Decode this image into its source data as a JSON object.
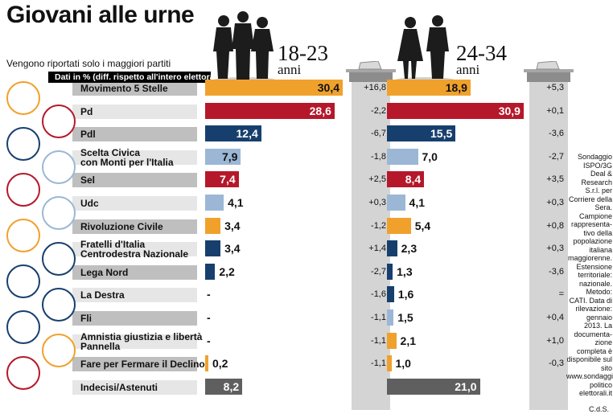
{
  "title": "Giovani alle urne",
  "subtitle": "Vengono riportati solo i maggiori partiti",
  "legend_note": "Dati in % (diff. rispetto all'intero elettorato)",
  "age_groups": [
    {
      "range": "18-23",
      "unit": "anni"
    },
    {
      "range": "24-34",
      "unit": "anni"
    }
  ],
  "source_note": "Sondaggio ISPO/3G Deal & Research S.r.l. per Corriere della Sera. Campione rappresenta-tivo della popolazione italiana maggiorenne. Estensione territoriale: nazionale. Metodo: CATI. Data di rilevazione: gennaio 2013. La documenta-zione completa è disponibile sul sito www.sondaggi politico elettorali.it",
  "credit": "C.d.S.",
  "colors": {
    "orange": "#f0a12c",
    "red": "#b5182b",
    "navy": "#173f6e",
    "lightblue": "#9bb7d5",
    "gray": "#5f5f5f",
    "stripe_dark": "#bfbfbf",
    "stripe_light": "#e6e6e6"
  },
  "chart_data": {
    "type": "bar",
    "orientation": "horizontal",
    "categories": [
      "Movimento 5 Stelle",
      "Pd",
      "Pdl",
      "Scelta Civica con Monti per l'Italia",
      "Sel",
      "Udc",
      "Rivoluzione Civile",
      "Fratelli d'Italia Centrodestra Nazionale",
      "Lega Nord",
      "La Destra",
      "Fli",
      "Amnistia giustizia e libertà Pannella",
      "Fare per Fermare il Declino",
      "Indecisi/Astenuti"
    ],
    "category_labels": [
      [
        "Movimento 5 Stelle"
      ],
      [
        "Pd"
      ],
      [
        "Pdl"
      ],
      [
        "Scelta Civica",
        "con Monti per l'Italia"
      ],
      [
        "Sel"
      ],
      [
        "Udc"
      ],
      [
        "Rivoluzione Civile"
      ],
      [
        "Fratelli d'Italia",
        "Centrodestra Nazionale"
      ],
      [
        "Lega Nord"
      ],
      [
        "La Destra"
      ],
      [
        "Fli"
      ],
      [
        "Amnistia giustizia e libertà",
        "Pannella"
      ],
      [
        "Fare per Fermare il Declino"
      ],
      [
        "Indecisi/Astenuti"
      ]
    ],
    "bar_colors": [
      "orange",
      "red",
      "navy",
      "lightblue",
      "red",
      "lightblue",
      "orange",
      "navy",
      "navy",
      "navy",
      "lightblue",
      "orange",
      "orange",
      "gray"
    ],
    "series": [
      {
        "name": "18-23 anni",
        "values": [
          30.4,
          28.6,
          12.4,
          7.9,
          7.4,
          4.1,
          3.4,
          3.4,
          2.2,
          null,
          null,
          null,
          0.2,
          8.2
        ],
        "labels": [
          "30,4",
          "28,6",
          "12,4",
          "7,9",
          "7,4",
          "4,1",
          "3,4",
          "3,4",
          "2,2",
          "-",
          "-",
          "-",
          "0,2",
          "8,2"
        ],
        "diff": [
          "+16,8",
          "-2,2",
          "-6,7",
          "-1,8",
          "+2,5",
          "+0,3",
          "-1,2",
          "+1,4",
          "-2,7",
          "-1,6",
          "-1,1",
          "-1,1",
          "-1,1",
          ""
        ]
      },
      {
        "name": "24-34 anni",
        "values": [
          18.9,
          30.9,
          15.5,
          7.0,
          8.4,
          4.1,
          5.4,
          2.3,
          1.3,
          1.6,
          1.5,
          2.1,
          1.0,
          21.0
        ],
        "labels": [
          "18,9",
          "30,9",
          "15,5",
          "7,0",
          "8,4",
          "4,1",
          "5,4",
          "2,3",
          "1,3",
          "1,6",
          "1,5",
          "2,1",
          "1,0",
          "21,0"
        ],
        "diff": [
          "+5,3",
          "+0,1",
          "-3,6",
          "-2,7",
          "+3,5",
          "+0,3",
          "+0,8",
          "+0,3",
          "-3,6",
          "=",
          "+0,4",
          "+1,0",
          "-0,3",
          ""
        ]
      }
    ],
    "xlim": [
      0,
      32
    ]
  }
}
